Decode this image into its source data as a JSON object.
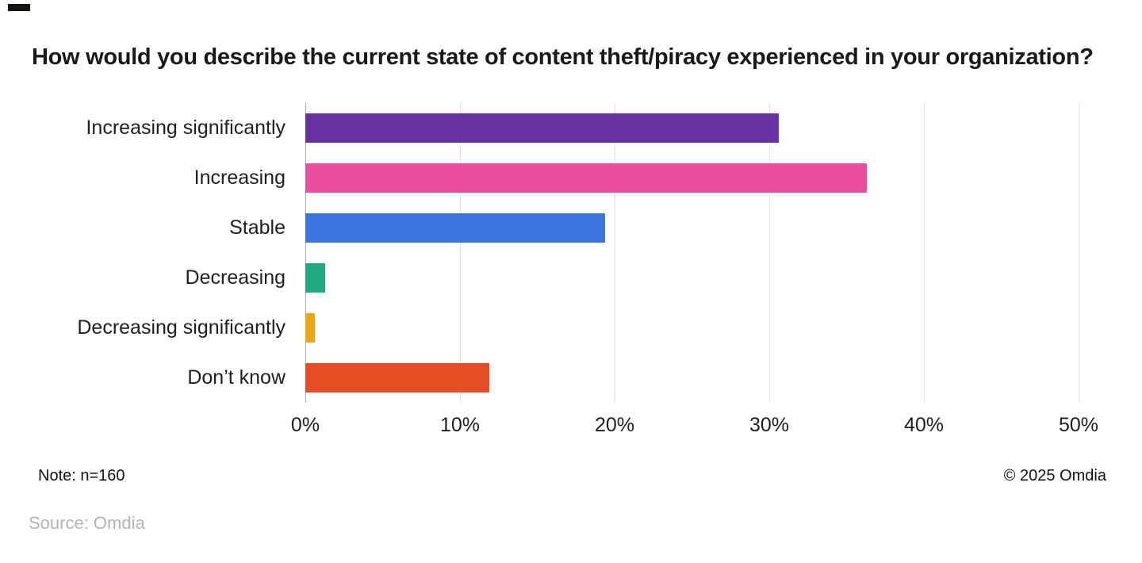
{
  "page": {
    "title": "How would you describe the current state of content theft/piracy experienced in your organization?",
    "note": "Note: n=160",
    "copyright": "© 2025 Omdia",
    "source": "Source: Omdia"
  },
  "chart_data": {
    "type": "bar",
    "orientation": "horizontal",
    "title": "How would you describe the current state of content theft/piracy experienced in your organization?",
    "categories": [
      "Increasing significantly",
      "Increasing",
      "Stable",
      "Decreasing",
      "Decreasing significantly",
      "Don’t know"
    ],
    "values": [
      30.6,
      36.3,
      19.4,
      1.3,
      0.6,
      11.9
    ],
    "unit": "%",
    "colors": [
      "#6831a3",
      "#ea4d9d",
      "#3b76de",
      "#20a87e",
      "#eaa513",
      "#e54e24"
    ],
    "x_ticks": [
      "0%",
      "10%",
      "20%",
      "30%",
      "40%",
      "50%"
    ],
    "xlim": [
      0,
      50
    ],
    "grid": "vertical-light-gray",
    "legend": "none",
    "xlabel": "",
    "ylabel": ""
  }
}
